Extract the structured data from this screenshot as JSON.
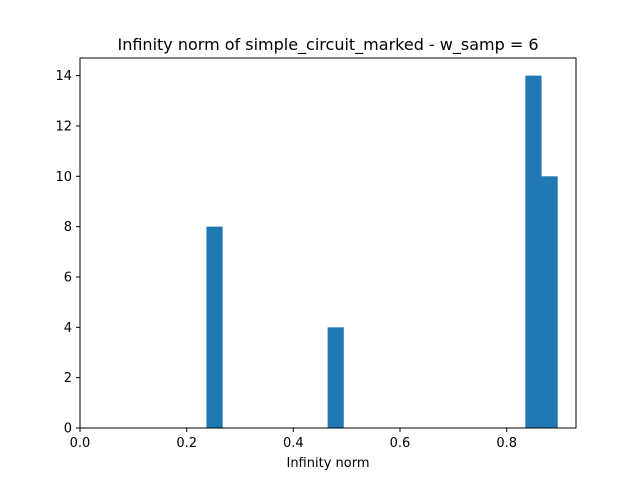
{
  "chart_data": {
    "type": "bar",
    "title": "Infinity norm of simple_circuit_marked - w_samp = 6",
    "xlabel": "Infinity norm",
    "ylabel": "",
    "xlim": [
      0.0,
      0.93
    ],
    "ylim": [
      0,
      14.7
    ],
    "xticks": [
      "0.0",
      "0.2",
      "0.4",
      "0.6",
      "0.8"
    ],
    "xtick_values": [
      0.0,
      0.2,
      0.4,
      0.6,
      0.8
    ],
    "yticks": [
      "0",
      "2",
      "4",
      "6",
      "8",
      "10",
      "12",
      "14"
    ],
    "ytick_values": [
      0,
      2,
      4,
      6,
      8,
      10,
      12,
      14
    ],
    "bin_width": 0.0303,
    "bins": [
      {
        "x_start": 0.2371,
        "count": 8
      },
      {
        "x_start": 0.4643,
        "count": 4
      },
      {
        "x_start": 0.8351,
        "count": 14
      },
      {
        "x_start": 0.8654,
        "count": 10
      }
    ],
    "bar_color": "#1f77b4",
    "grid": false,
    "legend": "none"
  }
}
